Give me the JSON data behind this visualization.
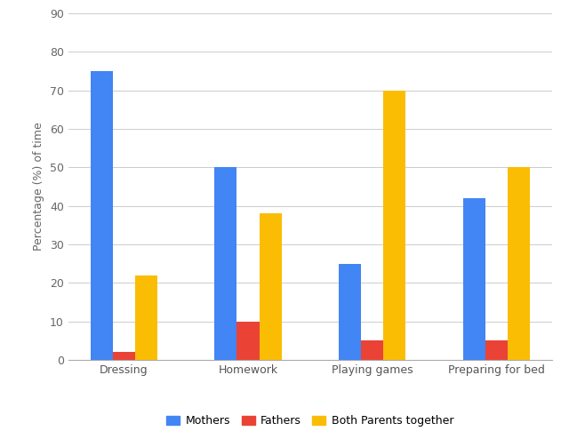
{
  "categories": [
    "Dressing",
    "Homework",
    "Playing games",
    "Preparing for bed"
  ],
  "series": {
    "Mothers": [
      75,
      50,
      25,
      42
    ],
    "Fathers": [
      2,
      10,
      5,
      5
    ],
    "Both Parents together": [
      22,
      38,
      70,
      50
    ]
  },
  "colors": {
    "Mothers": "#4285F4",
    "Fathers": "#EA4335",
    "Both Parents together": "#FBBC04"
  },
  "ylabel": "Percentage (%) of time",
  "ylim": [
    0,
    90
  ],
  "yticks": [
    0,
    10,
    20,
    30,
    40,
    50,
    60,
    70,
    80,
    90
  ],
  "legend_labels": [
    "Mothers",
    "Fathers",
    "Both Parents together"
  ],
  "bar_width": 0.18,
  "background_color": "#ffffff",
  "grid_color": "#cccccc",
  "legend_ncol": 3
}
